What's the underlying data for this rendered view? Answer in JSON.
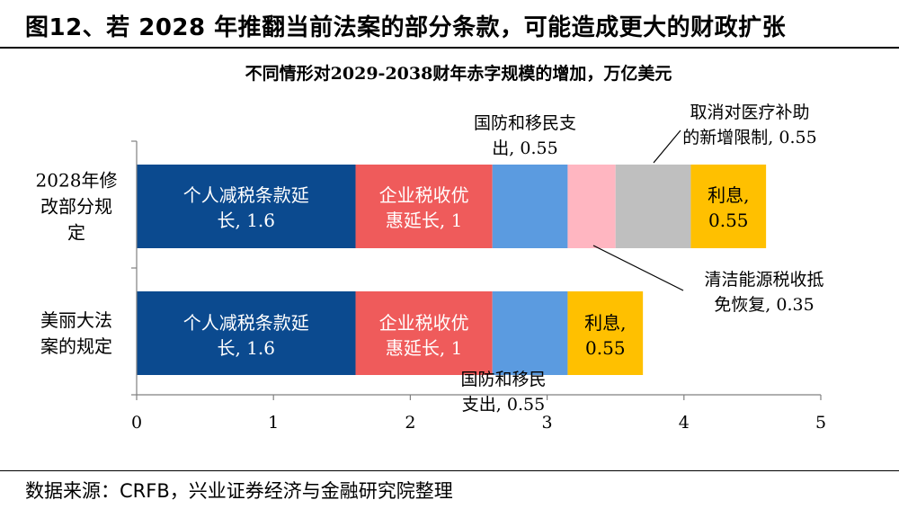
{
  "figure_title": "图12、若 2028 年推翻当前法案的部分条款，可能造成更大的财政扩张",
  "source": "数据来源：CRFB，兴业证券经济与金融研究院整理",
  "colors": {
    "personal_tax": "#0B4A8F",
    "corporate_tax": "#EF5B5B",
    "defense": "#5B9BE0",
    "clean_energy": "#FFB6C1",
    "medical": "#BFBFBF",
    "interest": "#FFC000"
  },
  "chart_data": {
    "type": "bar",
    "orientation": "horizontal",
    "stacked": true,
    "title": "不同情形对2029-2038财年赤字规模的增加，万亿美元",
    "xlabel": "",
    "ylabel": "",
    "xlim": [
      0,
      5
    ],
    "x_ticks": [
      "0",
      "1",
      "2",
      "3",
      "4",
      "5"
    ],
    "grid": false,
    "categories": [
      {
        "label_lines": [
          "2028年修",
          "改部分规",
          "定"
        ]
      },
      {
        "label_lines": [
          "美丽大法",
          "案的规定"
        ]
      }
    ],
    "series": [
      {
        "key": "personal_tax",
        "color": "#0B4A8F",
        "values": [
          1.6,
          1.6
        ]
      },
      {
        "key": "corporate_tax",
        "color": "#EF5B5B",
        "values": [
          1,
          1
        ]
      },
      {
        "key": "defense",
        "color": "#5B9BE0",
        "values": [
          0.55,
          0.55
        ]
      },
      {
        "key": "clean_energy",
        "color": "#FFB6C1",
        "values": [
          0.35,
          0
        ]
      },
      {
        "key": "medical",
        "color": "#BFBFBF",
        "values": [
          0.55,
          0
        ]
      },
      {
        "key": "interest",
        "color": "#FFC000",
        "values": [
          0.55,
          0.55
        ]
      }
    ],
    "labels": {
      "personal_bar1": [
        "个人减税条款延",
        "长, 1.6"
      ],
      "corporate_bar1": [
        "企业税收优",
        "惠延长, 1"
      ],
      "interest_bar1": [
        "利息,",
        "0.55"
      ],
      "defense_callout_top": [
        "国防和移民支",
        "出, 0.55"
      ],
      "medical_callout": [
        "取消对医疗补助",
        "的新增限制, 0.55"
      ],
      "clean_energy_callout": [
        "清洁能源税收抵",
        "免恢复, 0.35"
      ],
      "personal_bar2": [
        "个人减税条款延",
        "长, 1.6"
      ],
      "corporate_bar2": [
        "企业税收优",
        "惠延长, 1"
      ],
      "interest_bar2": [
        "利息,",
        "0.55"
      ],
      "defense_callout_bottom": [
        "国防和移民",
        "支出, 0.55"
      ]
    }
  }
}
